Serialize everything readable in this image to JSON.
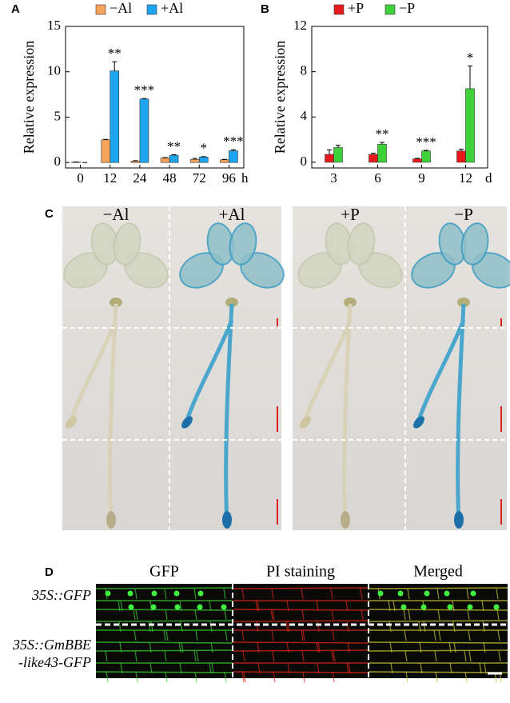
{
  "figure": {
    "panel_labels": [
      "A",
      "B",
      "C",
      "D"
    ]
  },
  "chart_data": [
    {
      "type": "bar",
      "y_label": "Relative expression",
      "x_unit": "h",
      "categories": [
        "0",
        "12",
        "24",
        "48",
        "72",
        "96"
      ],
      "series": [
        {
          "name": "−Al",
          "color": "#f7a35c",
          "values": [
            0.05,
            2.5,
            0.15,
            0.5,
            0.35,
            0.3
          ],
          "errors": [
            0,
            0.05,
            0.05,
            0.05,
            0.1,
            0.05
          ]
        },
        {
          "name": "+Al",
          "color": "#1ea5ef",
          "values": [
            0,
            10.1,
            7.0,
            0.8,
            0.6,
            1.3
          ],
          "errors": [
            0,
            1.0,
            0.05,
            0.05,
            0.05,
            0.1
          ]
        }
      ],
      "annotations": [
        null,
        "**",
        "***",
        "**",
        "*",
        "***"
      ],
      "ylim": [
        -0.6,
        15
      ],
      "yticks": [
        0,
        5,
        10,
        15
      ]
    },
    {
      "type": "bar",
      "y_label": "Relative expression",
      "x_unit": "d",
      "categories": [
        "3",
        "6",
        "9",
        "12"
      ],
      "series": [
        {
          "name": "+P",
          "color": "#e8191c",
          "values": [
            0.7,
            0.7,
            0.3,
            1.0
          ],
          "errors": [
            0.4,
            0.1,
            0.05,
            0.15
          ]
        },
        {
          "name": "−P",
          "color": "#3dd13a",
          "values": [
            1.3,
            1.6,
            1.0,
            6.5
          ],
          "errors": [
            0.2,
            0.15,
            0.05,
            2.0
          ]
        }
      ],
      "annotations": [
        null,
        "**",
        "***",
        "*"
      ],
      "ylim": [
        -0.5,
        12
      ],
      "yticks": [
        0,
        4,
        8,
        12
      ]
    }
  ],
  "panel_c": {
    "labels": [
      "−Al",
      "+Al",
      "+P",
      "−P"
    ]
  },
  "panel_d": {
    "columns": [
      "GFP",
      "PI staining",
      "Merged"
    ],
    "rows": [
      [
        "35S::GFP"
      ],
      [
        "35S::GmBBE",
        "-like43-GFP"
      ]
    ]
  }
}
